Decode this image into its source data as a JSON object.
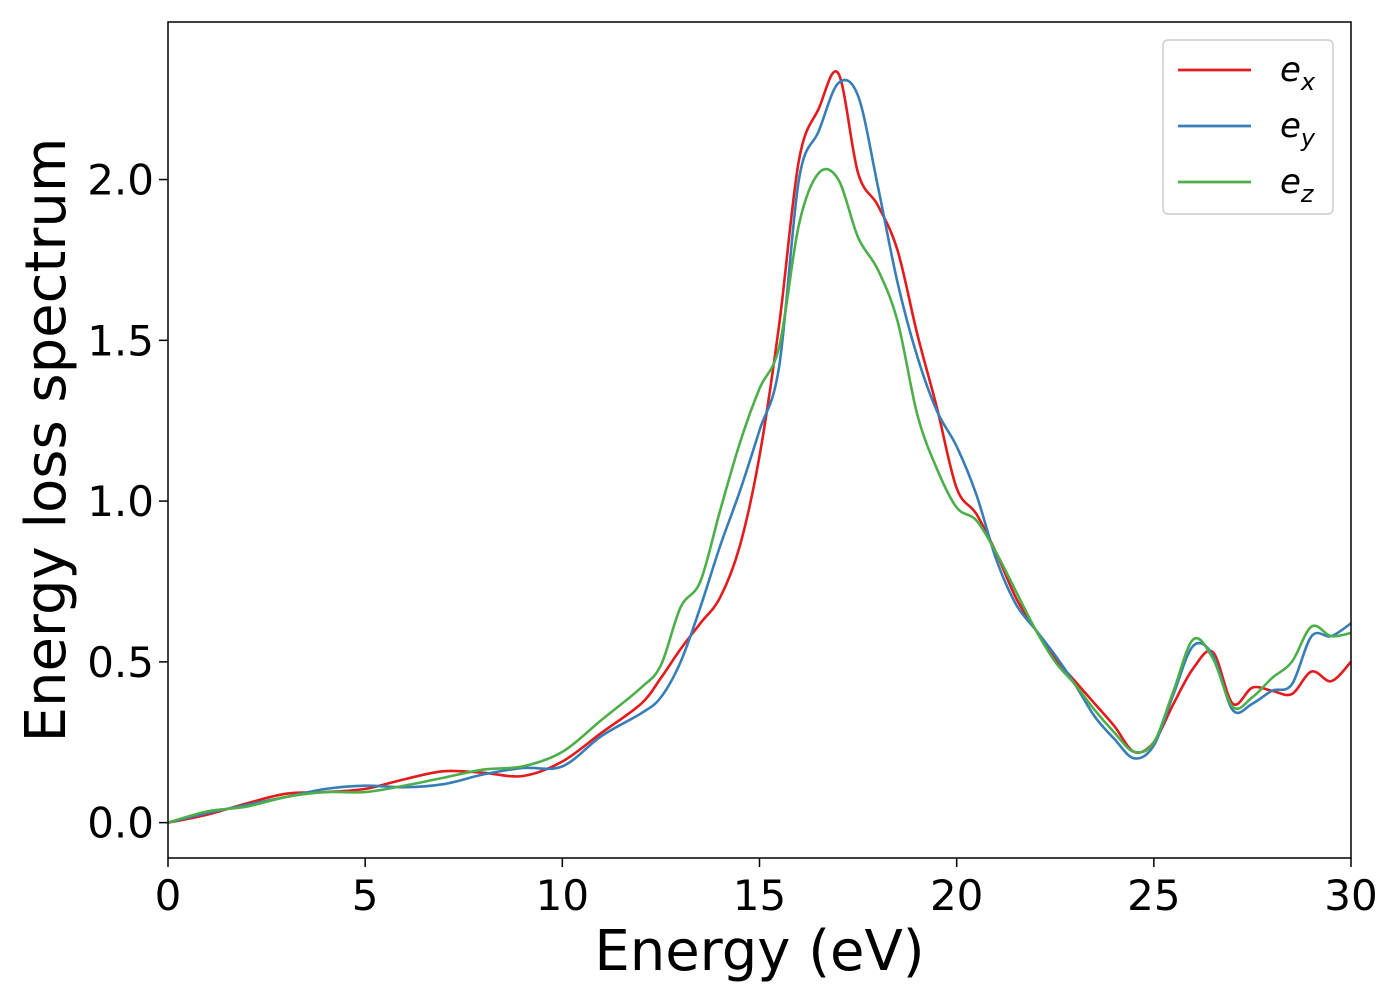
{
  "chart_data": {
    "type": "line",
    "title": "",
    "xlabel": "Energy (eV)",
    "ylabel": "Energy loss spectrum",
    "xlim": [
      0,
      30
    ],
    "ylim": [
      -0.11,
      2.49
    ],
    "xticks": [
      0,
      5,
      10,
      15,
      20,
      25,
      30
    ],
    "xtick_labels": [
      "0",
      "5",
      "10",
      "15",
      "20",
      "25",
      "30"
    ],
    "yticks": [
      0.0,
      0.5,
      1.0,
      1.5,
      2.0
    ],
    "ytick_labels": [
      "0.0",
      "0.5",
      "1.0",
      "1.5",
      "2.0"
    ],
    "grid": false,
    "legend_position": "top-right",
    "series": [
      {
        "name": "ex",
        "legend_base": "e",
        "legend_sub": "x",
        "color": "#e41a1c",
        "x": [
          0,
          1,
          2,
          3,
          4,
          5,
          6,
          7,
          8,
          9,
          10,
          11,
          12,
          12.5,
          13,
          13.5,
          14,
          14.5,
          15,
          15.5,
          16,
          16.5,
          17,
          17.5,
          18,
          18.5,
          19,
          19.5,
          20,
          20.5,
          21,
          21.5,
          22,
          22.5,
          23,
          23.5,
          24,
          24.5,
          25,
          25.5,
          26,
          26.5,
          27,
          27.5,
          28,
          28.5,
          29,
          29.5,
          30
        ],
        "y": [
          0.0,
          0.025,
          0.06,
          0.09,
          0.095,
          0.105,
          0.135,
          0.16,
          0.155,
          0.145,
          0.19,
          0.28,
          0.37,
          0.45,
          0.54,
          0.62,
          0.7,
          0.86,
          1.14,
          1.55,
          2.06,
          2.22,
          2.33,
          2.02,
          1.92,
          1.78,
          1.52,
          1.29,
          1.04,
          0.96,
          0.84,
          0.7,
          0.6,
          0.51,
          0.44,
          0.37,
          0.3,
          0.22,
          0.25,
          0.37,
          0.48,
          0.53,
          0.37,
          0.42,
          0.41,
          0.4,
          0.47,
          0.44,
          0.5
        ]
      },
      {
        "name": "ey",
        "legend_base": "e",
        "legend_sub": "y",
        "color": "#377eb8",
        "x": [
          0,
          1,
          2,
          3,
          4,
          5,
          6,
          7,
          8,
          9,
          10,
          11,
          12,
          12.5,
          13,
          13.5,
          14,
          14.5,
          15,
          15.5,
          16,
          16.5,
          17,
          17.5,
          18,
          18.5,
          19,
          19.5,
          20,
          20.5,
          21,
          21.5,
          22,
          22.5,
          23,
          23.5,
          24,
          24.5,
          25,
          25.5,
          26,
          26.5,
          27,
          27.5,
          28,
          28.5,
          29,
          29.5,
          30
        ],
        "y": [
          0.0,
          0.03,
          0.055,
          0.08,
          0.105,
          0.115,
          0.11,
          0.12,
          0.15,
          0.17,
          0.175,
          0.27,
          0.34,
          0.39,
          0.5,
          0.67,
          0.86,
          1.03,
          1.22,
          1.42,
          2.0,
          2.15,
          2.3,
          2.26,
          1.98,
          1.68,
          1.45,
          1.28,
          1.17,
          1.02,
          0.82,
          0.68,
          0.6,
          0.52,
          0.43,
          0.33,
          0.26,
          0.2,
          0.24,
          0.4,
          0.55,
          0.52,
          0.35,
          0.37,
          0.41,
          0.43,
          0.58,
          0.58,
          0.62
        ]
      },
      {
        "name": "ez",
        "legend_base": "e",
        "legend_sub": "z",
        "color": "#4daf4a",
        "x": [
          0,
          1,
          2,
          3,
          4,
          5,
          6,
          7,
          8,
          9,
          10,
          11,
          12,
          12.5,
          13,
          13.5,
          14,
          14.5,
          15,
          15.5,
          16,
          16.5,
          17,
          17.5,
          18,
          18.5,
          19,
          19.5,
          20,
          20.5,
          21,
          21.5,
          22,
          22.5,
          23,
          23.5,
          24,
          24.5,
          25,
          25.5,
          26,
          26.5,
          27,
          27.5,
          28,
          28.5,
          29,
          29.5,
          30
        ],
        "y": [
          0.0,
          0.035,
          0.05,
          0.08,
          0.095,
          0.095,
          0.115,
          0.14,
          0.165,
          0.175,
          0.22,
          0.32,
          0.42,
          0.49,
          0.67,
          0.75,
          0.97,
          1.18,
          1.35,
          1.48,
          1.86,
          2.02,
          2.0,
          1.82,
          1.72,
          1.56,
          1.27,
          1.1,
          0.98,
          0.94,
          0.84,
          0.72,
          0.6,
          0.5,
          0.43,
          0.35,
          0.28,
          0.22,
          0.25,
          0.41,
          0.57,
          0.51,
          0.36,
          0.39,
          0.45,
          0.5,
          0.61,
          0.58,
          0.59
        ]
      }
    ]
  }
}
